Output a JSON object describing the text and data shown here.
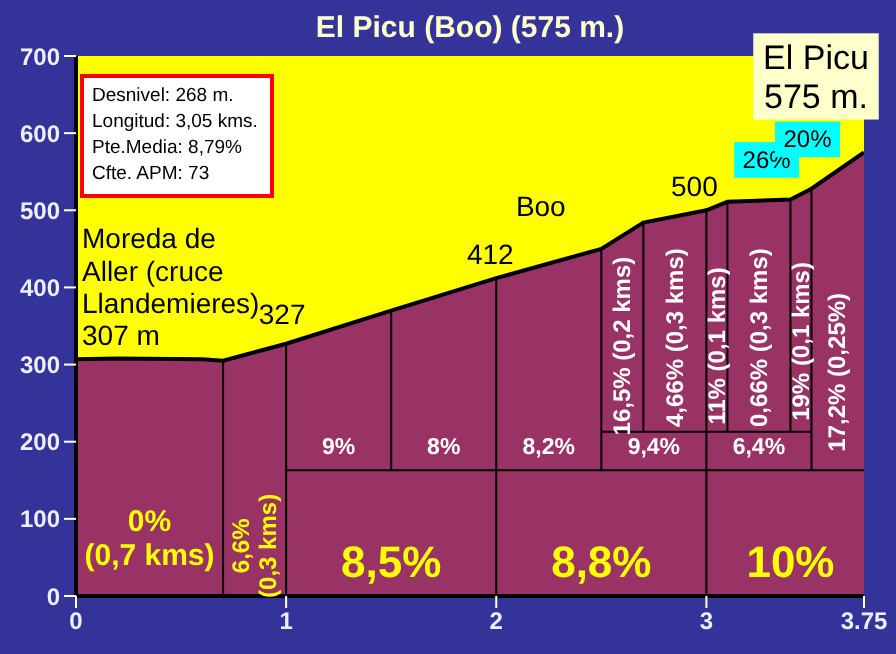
{
  "chart_data": {
    "type": "area",
    "title": "El Picu (Boo) (575 m.)",
    "xlim": [
      0,
      3.75
    ],
    "xticks": [
      0,
      1,
      2,
      3,
      3.75
    ],
    "ylim": [
      0,
      700
    ],
    "yticks": [
      0,
      100,
      200,
      300,
      400,
      500,
      600,
      700
    ],
    "series": [
      {
        "color": "#993366",
        "x": [
          0,
          0.2,
          0.6,
          0.7,
          1.0,
          1.5,
          2.0,
          2.5,
          2.7,
          3.0,
          3.1,
          3.4,
          3.5,
          3.75
        ],
        "values": [
          307,
          308,
          307,
          305,
          327,
          370,
          412,
          450,
          484,
          500,
          511,
          514,
          528,
          575
        ]
      },
      {
        "type": "line",
        "color": "#000000",
        "x": [
          0.7,
          0.7
        ],
        "values": [
          0,
          305
        ]
      },
      {
        "type": "line",
        "color": "#000000",
        "x": [
          1.0,
          1.0
        ],
        "values": [
          0,
          327
        ]
      },
      {
        "type": "line",
        "color": "#000000",
        "x": [
          1.5,
          1.5
        ],
        "values": [
          163,
          370
        ]
      },
      {
        "type": "line",
        "color": "#000000",
        "x": [
          2.0,
          2.0
        ],
        "values": [
          0,
          412
        ]
      },
      {
        "type": "line",
        "color": "#000000",
        "x": [
          2.5,
          2.5
        ],
        "values": [
          163,
          450
        ]
      },
      {
        "type": "line",
        "color": "#000000",
        "x": [
          2.7,
          2.7
        ],
        "values": [
          213,
          484
        ]
      },
      {
        "type": "line",
        "color": "#000000",
        "x": [
          3.0,
          3.0
        ],
        "values": [
          0,
          500
        ]
      },
      {
        "type": "line",
        "color": "#000000",
        "x": [
          3.1,
          3.1
        ],
        "values": [
          213,
          511
        ]
      },
      {
        "type": "line",
        "color": "#000000",
        "x": [
          3.4,
          3.4
        ],
        "values": [
          213,
          514
        ]
      },
      {
        "type": "line",
        "color": "#000000",
        "x": [
          3.5,
          3.5
        ],
        "values": [
          163,
          528
        ]
      },
      {
        "type": "line",
        "color": "#000000",
        "x": [
          1.0,
          3.75
        ],
        "values": [
          163,
          163
        ]
      },
      {
        "type": "line",
        "color": "#000000",
        "x": [
          2.5,
          3.5
        ],
        "values": [
          213,
          213
        ]
      }
    ],
    "annotations": [
      "Desnivel: 268 m.",
      "Longitud: 3,05 kms.",
      "Pte.Media: 8,79%",
      "Cfte. APM: 73",
      "0% (0,7 kms)",
      "6,6% (0,3 kms)",
      "8,5%",
      "8,8%",
      "10%",
      "9%",
      "8%",
      "8,2%",
      "9,4%",
      "6,4%",
      "16,5% (0,2 kms)",
      "4,66% (0,3 kms)",
      "11% (0,1 kms)",
      "0,66% (0,3 kms)",
      "19% (0,1 kms)",
      "17,2% (0,25%)",
      {
        "text": "Moreda de Aller (cruce Llandemieres) 307 m",
        "x": 0,
        "y": 307
      },
      {
        "text": "327",
        "x": 1.0,
        "y": 327
      },
      {
        "text": "412",
        "x": 2.0,
        "y": 412
      },
      {
        "text": "Boo",
        "x": 2.25,
        "y": 431
      },
      {
        "text": "500",
        "x": 3.0,
        "y": 500
      },
      {
        "text": "26%",
        "x": 3.42,
        "y": 516
      },
      {
        "text": "20%",
        "x": 3.7,
        "y": 566
      },
      {
        "text": "El Picu 575 m.",
        "x": 3.75,
        "y": 575
      }
    ]
  }
}
